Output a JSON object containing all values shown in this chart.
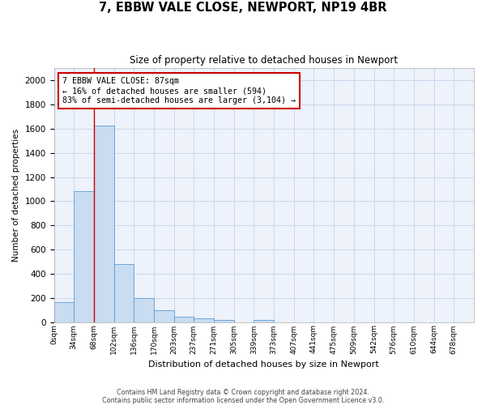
{
  "title": "7, EBBW VALE CLOSE, NEWPORT, NP19 4BR",
  "subtitle": "Size of property relative to detached houses in Newport",
  "xlabel": "Distribution of detached houses by size in Newport",
  "ylabel": "Number of detached properties",
  "bin_labels": [
    "0sqm",
    "34sqm",
    "68sqm",
    "102sqm",
    "136sqm",
    "170sqm",
    "203sqm",
    "237sqm",
    "271sqm",
    "305sqm",
    "339sqm",
    "373sqm",
    "407sqm",
    "441sqm",
    "475sqm",
    "509sqm",
    "542sqm",
    "576sqm",
    "610sqm",
    "644sqm",
    "678sqm"
  ],
  "bar_heights": [
    165,
    1085,
    1625,
    480,
    200,
    100,
    45,
    30,
    20,
    0,
    20,
    0,
    0,
    0,
    0,
    0,
    0,
    0,
    0,
    0,
    0
  ],
  "bar_color": "#c9dcf0",
  "bar_edge_color": "#5b9bd5",
  "vline_x": 2,
  "annotation_text": "7 EBBW VALE CLOSE: 87sqm\n← 16% of detached houses are smaller (594)\n83% of semi-detached houses are larger (3,104) →",
  "annotation_box_color": "#ffffff",
  "annotation_border_color": "#cc0000",
  "ylim": [
    0,
    2100
  ],
  "yticks": [
    0,
    200,
    400,
    600,
    800,
    1000,
    1200,
    1400,
    1600,
    1800,
    2000
  ],
  "footer_line1": "Contains HM Land Registry data © Crown copyright and database right 2024.",
  "footer_line2": "Contains public sector information licensed under the Open Government Licence v3.0.",
  "bg_color": "#edf2fb",
  "fig_bg_color": "#ffffff",
  "grid_color": "#c8d4ea"
}
